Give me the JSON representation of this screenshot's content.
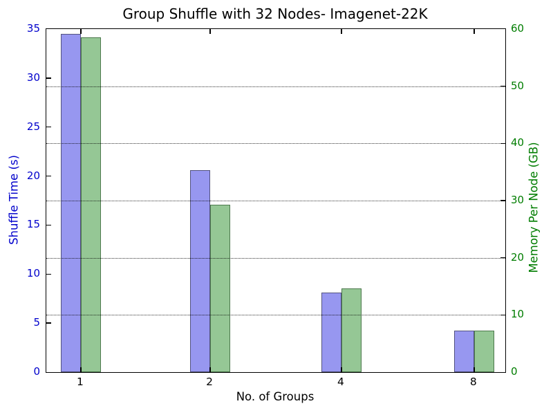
{
  "chart_data": {
    "type": "bar",
    "title": "Group Shuffle with 32 Nodes- Imagenet-22K",
    "xlabel": "No. of Groups",
    "categories": [
      "1",
      "2",
      "4",
      "8"
    ],
    "series": [
      {
        "name": "Shuffle Time (s)",
        "axis": "left",
        "values": [
          34.5,
          20.6,
          8.1,
          4.25
        ],
        "fill_color": "#9797f0",
        "edge_color": "#53537e"
      },
      {
        "name": "Memory Per Node (GB)",
        "axis": "right",
        "values": [
          58.5,
          29.3,
          14.6,
          7.3
        ],
        "fill_color": "#95c795",
        "edge_color": "#4c784c"
      }
    ],
    "axes": {
      "left": {
        "label": "Shuffle Time (s)",
        "color": "#0000cc",
        "min": 0,
        "max": 35,
        "ticks": [
          0,
          5,
          10,
          15,
          20,
          25,
          30,
          35
        ]
      },
      "right": {
        "label": "Memory Per Node (GB)",
        "color": "#007d00",
        "min": 0,
        "max": 60,
        "ticks": [
          0,
          10,
          20,
          30,
          40,
          50,
          60
        ]
      }
    },
    "grid": {
      "on": true,
      "style": "dotted",
      "color": "#000000",
      "right_axis_values": [
        10,
        20,
        30,
        40,
        50
      ]
    },
    "legend": "none",
    "background_color": "#ffffff",
    "spine_color": "#000000"
  }
}
